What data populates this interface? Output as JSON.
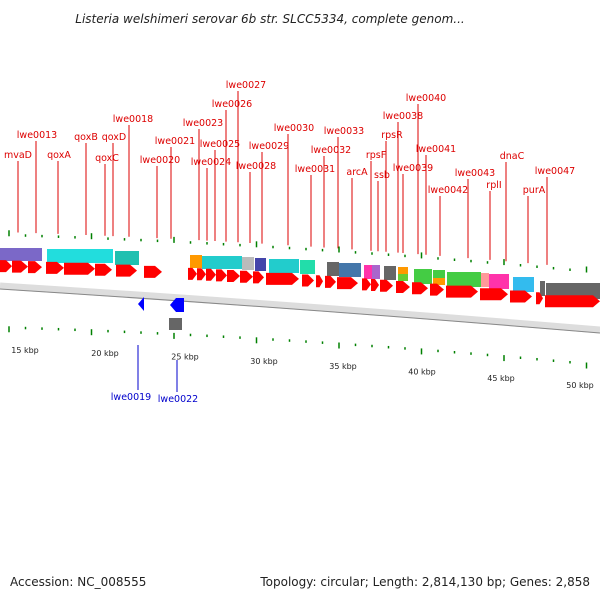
{
  "title": "Listeria welshimeri serovar 6b str. SLCC5334, complete genom...",
  "footer": {
    "accession": "Accession: NC_008555",
    "summary": "Topology: circular; Length: 2,814,130 bp; Genes: 2,858"
  },
  "colors": {
    "forward_cds": "#ff0000",
    "reverse_cds": "#0000ff",
    "forward_label": "#dd0000",
    "reverse_label": "#0000cc",
    "tick": "#008000",
    "backbone": "#dddddd"
  },
  "kbp_labels": [
    "15 kbp",
    "20 kbp",
    "25 kbp",
    "30 kbp",
    "35 kbp",
    "40 kbp",
    "45 kbp",
    "50 kbp"
  ],
  "forward_gene_labels": [
    "mvaD",
    "lwe0013",
    "qoxA",
    "qoxB",
    "qoxC",
    "qoxD",
    "lwe0018",
    "lwe0020",
    "lwe0021",
    "lwe0023",
    "lwe0024",
    "lwe0025",
    "lwe0026",
    "lwe0027",
    "lwe0028",
    "lwe0029",
    "lwe0030",
    "lwe0031",
    "lwe0032",
    "lwe0033",
    "arcA",
    "rpsF",
    "ssb",
    "rpsR",
    "lwe0038",
    "lwe0039",
    "lwe0040",
    "lwe0041",
    "lwe0042",
    "lwe0043",
    "rplI",
    "dnaC",
    "purA",
    "lwe0047"
  ],
  "reverse_gene_labels": [
    "lwe0019",
    "lwe0022"
  ]
}
